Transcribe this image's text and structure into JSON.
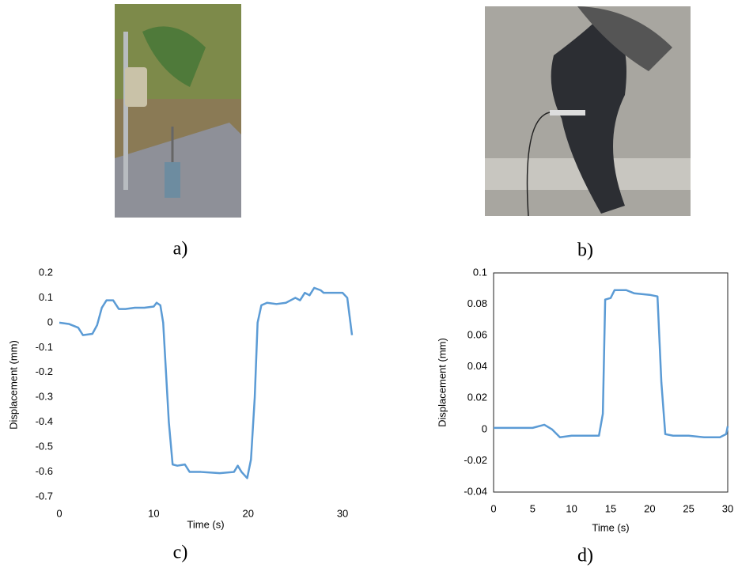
{
  "captions": [
    "a)",
    "b)",
    "c)",
    "d)"
  ],
  "chart_data": [
    {
      "type": "line",
      "x_label": "Time (s)",
      "y_label": "Displacement (mm)",
      "x": [
        0,
        1,
        2,
        2.5,
        3.5,
        4,
        4.5,
        5,
        5.7,
        6.3,
        7,
        8,
        9,
        10,
        10.3,
        10.7,
        11,
        11.3,
        11.6,
        12,
        12.5,
        13.3,
        13.8,
        15,
        17,
        18.5,
        18.9,
        19.3,
        19.9,
        20.3,
        20.7,
        21,
        21.4,
        22,
        23,
        24,
        25,
        25.5,
        26,
        26.5,
        27,
        27.7,
        28,
        29,
        30,
        30.5,
        31
      ],
      "series": [
        {
          "color": "#5b9bd5",
          "values": [
            0,
            -0.005,
            -0.02,
            -0.05,
            -0.045,
            -0.01,
            0.06,
            0.09,
            0.09,
            0.055,
            0.055,
            0.06,
            0.06,
            0.065,
            0.08,
            0.07,
            0,
            -0.2,
            -0.4,
            -0.57,
            -0.575,
            -0.57,
            -0.6,
            -0.6,
            -0.605,
            -0.6,
            -0.575,
            -0.6,
            -0.625,
            -0.55,
            -0.3,
            0,
            0.07,
            0.08,
            0.075,
            0.08,
            0.1,
            0.09,
            0.12,
            0.11,
            0.14,
            0.13,
            0.12,
            0.12,
            0.12,
            0.1,
            -0.05
          ]
        }
      ],
      "xlim": [
        0,
        31
      ],
      "xticks": [
        0,
        10,
        20,
        30
      ],
      "ylim": [
        -0.7,
        0.2
      ],
      "yticks": [
        0.2,
        0.1,
        0,
        -0.1,
        -0.2,
        -0.3,
        -0.4,
        -0.5,
        -0.6,
        -0.7
      ],
      "frame": false
    },
    {
      "type": "line",
      "x_label": "Time (s)",
      "y_label": "Displacement (mm)",
      "x": [
        0,
        5,
        6.5,
        7.5,
        8.5,
        10,
        13.5,
        14,
        14.3,
        15,
        15.5,
        17,
        18,
        20,
        21,
        21.5,
        22,
        23,
        25,
        27,
        29,
        29.8,
        30
      ],
      "series": [
        {
          "color": "#5b9bd5",
          "values": [
            0.001,
            0.001,
            0.003,
            0,
            -0.005,
            -0.004,
            -0.004,
            0.01,
            0.083,
            0.084,
            0.089,
            0.089,
            0.087,
            0.086,
            0.085,
            0.03,
            -0.003,
            -0.004,
            -0.004,
            -0.005,
            -0.005,
            -0.003,
            0.002
          ]
        }
      ],
      "xlim": [
        0,
        30
      ],
      "xticks": [
        0,
        5,
        10,
        15,
        20,
        25,
        30
      ],
      "ylim": [
        -0.04,
        0.1
      ],
      "yticks": [
        0.1,
        0.08,
        0.06,
        0.04,
        0.02,
        0,
        -0.02,
        -0.04
      ],
      "frame": true
    }
  ]
}
